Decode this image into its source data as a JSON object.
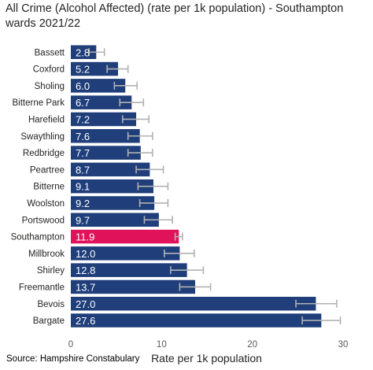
{
  "chart_data": {
    "type": "bar",
    "orientation": "horizontal",
    "title": "All Crime (Alcohol Affected) (rate per 1k population) - Southampton wards 2021/22",
    "xlabel": "Rate per 1k population",
    "ylabel": "",
    "xlim": [
      0,
      30
    ],
    "x_ticks": [
      "0",
      "10",
      "20",
      "30"
    ],
    "grid": false,
    "categories": [
      "Bassett",
      "Coxford",
      "Sholing",
      "Bitterne Park",
      "Harefield",
      "Swaythling",
      "Redbridge",
      "Peartree",
      "Bitterne",
      "Woolston",
      "Portswood",
      "Southampton",
      "Millbrook",
      "Shirley",
      "Freemantle",
      "Bevois",
      "Bargate"
    ],
    "values": [
      2.8,
      5.2,
      6.0,
      6.7,
      7.2,
      7.6,
      7.7,
      8.7,
      9.1,
      9.2,
      9.7,
      11.9,
      12.0,
      12.8,
      13.7,
      27.0,
      27.6
    ],
    "value_labels": [
      "2.8",
      "5.2",
      "6.0",
      "6.7",
      "7.2",
      "7.6",
      "7.7",
      "8.7",
      "9.1",
      "9.2",
      "9.7",
      "11.9",
      "12.0",
      "12.8",
      "13.7",
      "27.0",
      "27.6"
    ],
    "error_low": [
      2.0,
      4.0,
      4.8,
      5.4,
      5.7,
      6.3,
      6.3,
      7.2,
      7.4,
      7.6,
      8.1,
      11.5,
      10.3,
      11.0,
      12.0,
      24.8,
      25.5
    ],
    "error_high": [
      3.7,
      6.3,
      7.3,
      8.0,
      8.6,
      9.0,
      9.0,
      10.2,
      10.7,
      10.7,
      11.2,
      12.3,
      13.6,
      14.6,
      15.4,
      29.3,
      29.7
    ],
    "highlight_category": "Southampton",
    "colors": {
      "bar": "#1F3E7A",
      "highlight": "#E0135A",
      "error_bar": "#B2B2B2",
      "label": "#FFFFFF",
      "axis_text": "#595959"
    }
  },
  "footer": {
    "source": "Source: Hampshire Constabulary"
  }
}
